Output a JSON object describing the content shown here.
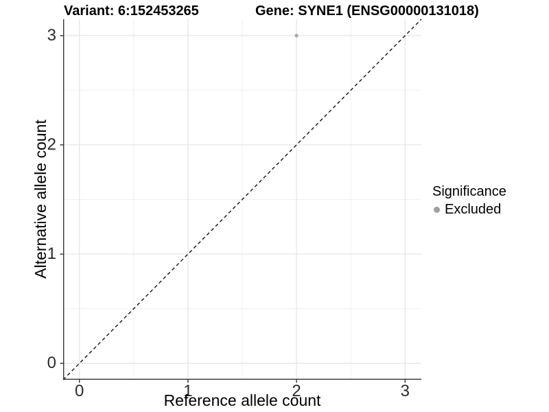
{
  "page": {
    "background": "#ffffff"
  },
  "header": {
    "title_left": "Variant: 6:152453265",
    "title_right": "Gene: SYNE1 (ENSG00000131018)"
  },
  "chart_data": {
    "type": "scatter",
    "title_left": "Variant: 6:152453265",
    "title_right": "Gene: SYNE1 (ENSG00000131018)",
    "xlabel": "Reference allele count",
    "ylabel": "Alternative allele count",
    "xlim": [
      -0.15,
      3.15
    ],
    "ylim": [
      -0.15,
      3.15
    ],
    "x_ticks": [
      0,
      1,
      2,
      3
    ],
    "y_ticks": [
      0,
      1,
      2,
      3
    ],
    "x_minor_ticks": [
      0.5,
      1.5,
      2.5
    ],
    "y_minor_ticks": [
      0.5,
      1.5,
      2.5
    ],
    "grid": true,
    "legend_position": "right",
    "reference_line": {
      "name": "identity-line",
      "slope": 1,
      "intercept": 0,
      "style": "dashed",
      "color": "#111111"
    },
    "series": [
      {
        "name": "Excluded",
        "color": "#a8a8a8",
        "points": [
          {
            "x": 2,
            "y": 3
          }
        ]
      }
    ],
    "legend": {
      "title": "Significance",
      "entries": [
        {
          "label": "Excluded",
          "color": "#a0a0a0"
        }
      ]
    }
  },
  "colors": {
    "axis_line": "#333333",
    "tick_mark": "#333333",
    "tick_label": "#2b2b2b",
    "grid_major": "#e4e4e4",
    "grid_minor": "#f0f0f0",
    "point": "#a8a8a8",
    "legend_key": "#a0a0a0",
    "dashed_line": "#111111"
  }
}
